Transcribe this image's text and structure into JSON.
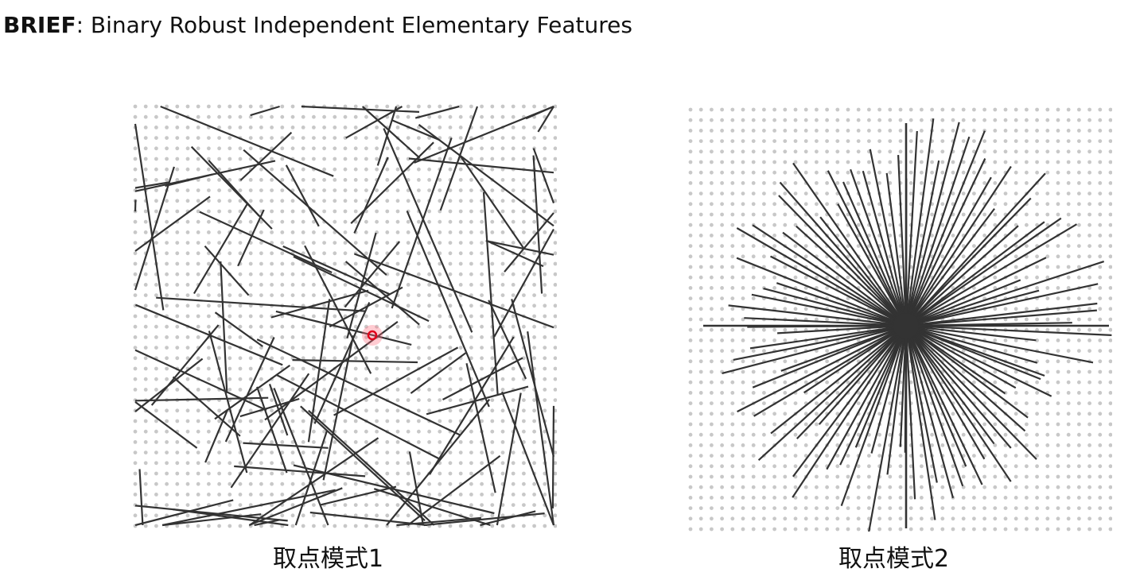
{
  "header": {
    "title_bold": "BRIEF",
    "title_rest": ": Binary Robust Independent Elementary Features"
  },
  "panels": [
    {
      "caption": "取点模式1",
      "pattern": "random-pairs"
    },
    {
      "caption": "取点模式2",
      "pattern": "radial-from-center"
    }
  ],
  "colors": {
    "grid_dot": "#c8c8c8",
    "line": "#333333",
    "keypoint": "#e0001b",
    "keypoint_glow": "#ff6b7a"
  }
}
